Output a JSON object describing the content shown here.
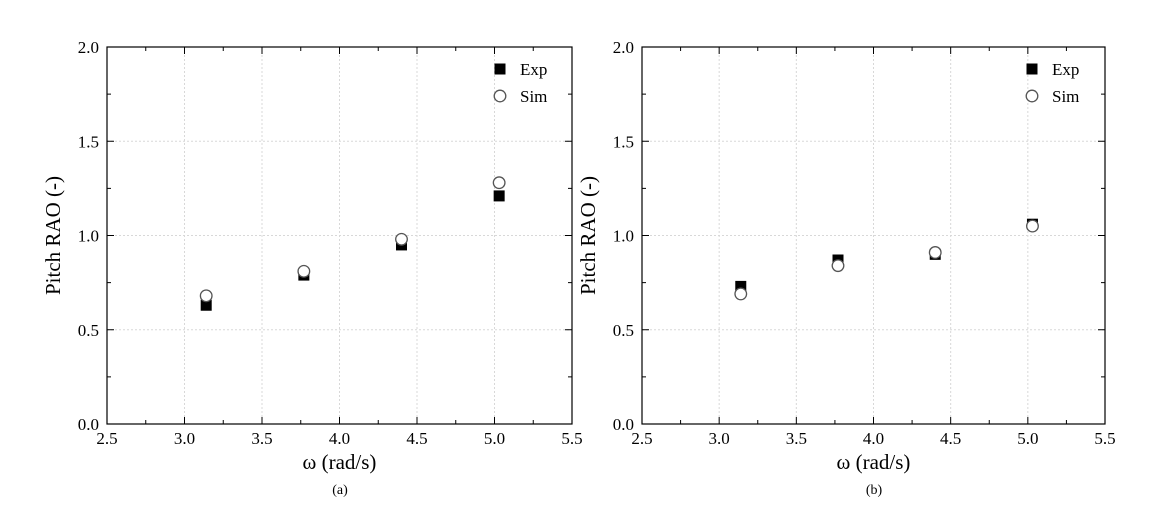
{
  "chart_data": [
    {
      "type": "scatter",
      "panel_label": "(a)",
      "xlabel": "ω (rad/s)",
      "ylabel": "Pitch RAO (-)",
      "xlim": [
        2.5,
        5.5
      ],
      "ylim": [
        0.0,
        2.0
      ],
      "xticks": [
        "2.5",
        "3.0",
        "3.5",
        "4.0",
        "4.5",
        "5.0",
        "5.5"
      ],
      "yticks": [
        "0.0",
        "0.5",
        "1.0",
        "1.5",
        "2.0"
      ],
      "grid": true,
      "legend_position": "top-right",
      "x": [
        3.14,
        3.77,
        4.4,
        5.03
      ],
      "series": [
        {
          "name": "Exp",
          "marker": "filled-square",
          "color": "#000000",
          "values": [
            0.63,
            0.79,
            0.95,
            1.21
          ]
        },
        {
          "name": "Sim",
          "marker": "open-circle",
          "color": "#555555",
          "values": [
            0.68,
            0.81,
            0.98,
            1.28
          ]
        }
      ]
    },
    {
      "type": "scatter",
      "panel_label": "(b)",
      "xlabel": "ω (rad/s)",
      "ylabel": "Pitch RAO (-)",
      "xlim": [
        2.5,
        5.5
      ],
      "ylim": [
        0.0,
        2.0
      ],
      "xticks": [
        "2.5",
        "3.0",
        "3.5",
        "4.0",
        "4.5",
        "5.0",
        "5.5"
      ],
      "yticks": [
        "0.0",
        "0.5",
        "1.0",
        "1.5",
        "2.0"
      ],
      "grid": true,
      "legend_position": "top-right",
      "x": [
        3.14,
        3.77,
        4.4,
        5.03
      ],
      "series": [
        {
          "name": "Exp",
          "marker": "filled-square",
          "color": "#000000",
          "values": [
            0.73,
            0.87,
            0.9,
            1.06
          ]
        },
        {
          "name": "Sim",
          "marker": "open-circle",
          "color": "#555555",
          "values": [
            0.69,
            0.84,
            0.91,
            1.05
          ]
        }
      ]
    }
  ]
}
